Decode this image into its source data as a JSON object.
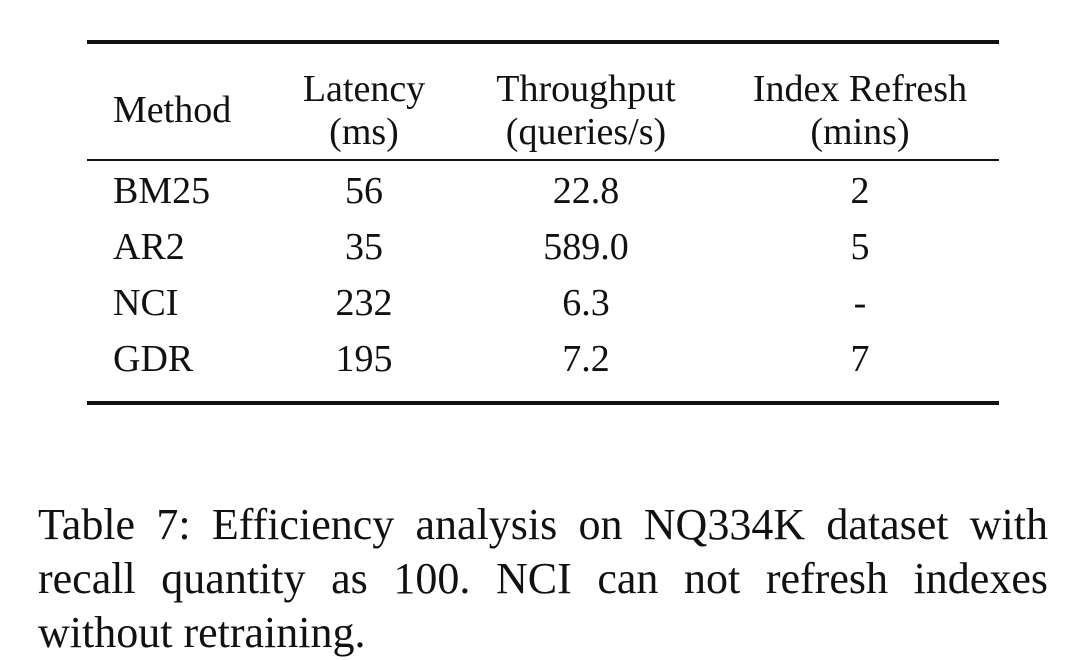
{
  "table": {
    "headers": [
      {
        "line1": "Method",
        "line2": ""
      },
      {
        "line1": "Latency",
        "line2": "(ms)"
      },
      {
        "line1": "Throughput",
        "line2": "(queries/s)"
      },
      {
        "line1": "Index Refresh",
        "line2": "(mins)"
      }
    ],
    "rows": [
      {
        "method": "BM25",
        "latency": "56",
        "throughput": "22.8",
        "refresh": "2"
      },
      {
        "method": "AR2",
        "latency": "35",
        "throughput": "589.0",
        "refresh": "5"
      },
      {
        "method": "NCI",
        "latency": "232",
        "throughput": "6.3",
        "refresh": "-"
      },
      {
        "method": "GDR",
        "latency": "195",
        "throughput": "7.2",
        "refresh": "7"
      }
    ]
  },
  "caption": "Table 7: Efficiency analysis on NQ334K dataset with recall quantity as 100.  NCI can not refresh indexes without retraining."
}
